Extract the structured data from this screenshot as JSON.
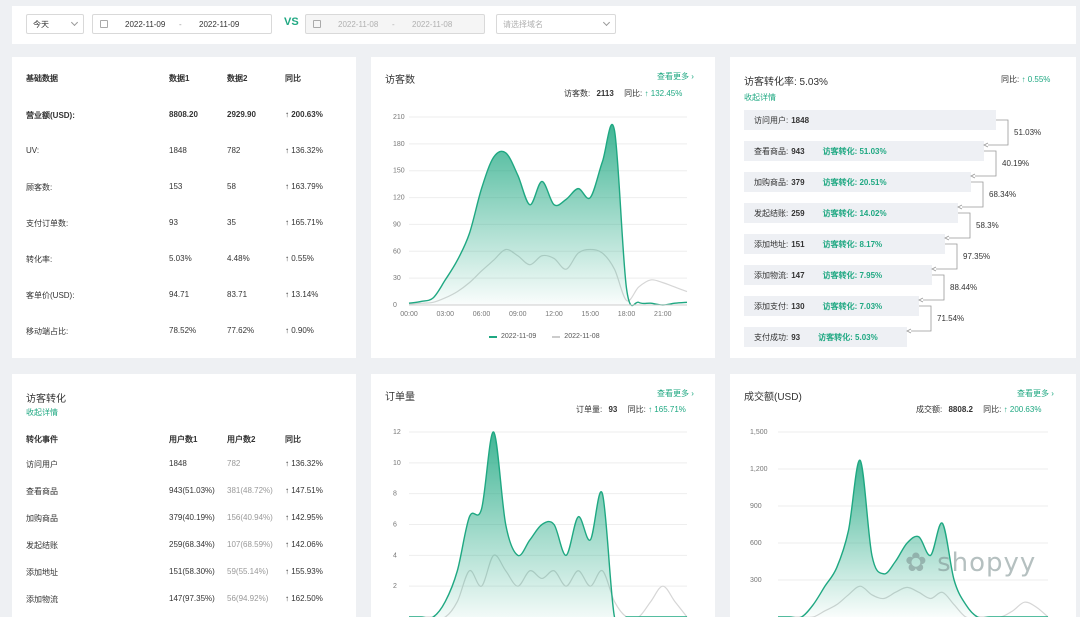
{
  "filters": {
    "period": "今天",
    "date1_start": "2022-11-09",
    "date1_end": "2022-11-09",
    "vs": "VS",
    "date2_start": "2022-11-08",
    "date2_end": "2022-11-08",
    "domain_placeholder": "请选择域名",
    "date_sep": "-"
  },
  "basic": {
    "headers": [
      "基础数据",
      "数据1",
      "数据2",
      "同比"
    ],
    "rows": [
      {
        "name": "营业额(USD):",
        "v1": "8808.20",
        "v2": "2929.90",
        "ratio": "↑ 200.63%",
        "highlight": true
      },
      {
        "name": "UV:",
        "v1": "1848",
        "v2": "782",
        "ratio": "↑ 136.32%"
      },
      {
        "name": "顾客数:",
        "v1": "153",
        "v2": "58",
        "ratio": "↑ 163.79%"
      },
      {
        "name": "支付订单数:",
        "v1": "93",
        "v2": "35",
        "ratio": "↑ 165.71%"
      },
      {
        "name": "转化率:",
        "v1": "5.03%",
        "v2": "4.48%",
        "ratio": "↑ 0.55%"
      },
      {
        "name": "客单价(USD):",
        "v1": "94.71",
        "v2": "83.71",
        "ratio": "↑ 13.14%"
      },
      {
        "name": "移动端占比:",
        "v1": "78.52%",
        "v2": "77.62%",
        "ratio": "↑ 0.90%"
      }
    ]
  },
  "visitors": {
    "title": "访客数",
    "more": "查看更多 ›",
    "stat_label": "访客数:",
    "stat_value": "2113",
    "yoy_label": "同比:",
    "yoy_value": "↑ 132.45%",
    "legend1": "2022-11-09",
    "legend2": "2022-11-08"
  },
  "funnel": {
    "title": "访客转化率:  5.03%",
    "yoy_label": "同比:",
    "yoy_value": "↑ 0.55%",
    "collapse": "收起详情",
    "steps": [
      {
        "name": "访问用户:",
        "value": "1848",
        "conv": ""
      },
      {
        "name": "查看商品:",
        "value": "943",
        "conv": "访客转化: 51.03%"
      },
      {
        "name": "加购商品:",
        "value": "379",
        "conv": "访客转化: 20.51%"
      },
      {
        "name": "发起结账:",
        "value": "259",
        "conv": "访客转化: 14.02%"
      },
      {
        "name": "添加地址:",
        "value": "151",
        "conv": "访客转化: 8.17%"
      },
      {
        "name": "添加物流:",
        "value": "147",
        "conv": "访客转化: 7.95%"
      },
      {
        "name": "添加支付:",
        "value": "130",
        "conv": "访客转化: 7.03%"
      },
      {
        "name": "支付成功:",
        "value": "93",
        "conv": "访客转化: 5.03%"
      }
    ],
    "step_rates": [
      "51.03%",
      "40.19%",
      "68.34%",
      "58.3%",
      "97.35%",
      "88.44%",
      "71.54%"
    ]
  },
  "conversion": {
    "title": "访客转化",
    "collapse": "收起详情",
    "headers": [
      "转化事件",
      "用户数1",
      "用户数2",
      "同比"
    ],
    "rows": [
      {
        "name": "访问用户",
        "v1": "1848",
        "v2": "782",
        "ratio": "↑ 136.32%"
      },
      {
        "name": "查看商品",
        "v1": "943(51.03%)",
        "v2": "381(48.72%)",
        "ratio": "↑ 147.51%"
      },
      {
        "name": "加购商品",
        "v1": "379(40.19%)",
        "v2": "156(40.94%)",
        "ratio": "↑ 142.95%"
      },
      {
        "name": "发起结账",
        "v1": "259(68.34%)",
        "v2": "107(68.59%)",
        "ratio": "↑ 142.06%"
      },
      {
        "name": "添加地址",
        "v1": "151(58.30%)",
        "v2": "59(55.14%)",
        "ratio": "↑ 155.93%"
      },
      {
        "name": "添加物流",
        "v1": "147(97.35%)",
        "v2": "56(94.92%)",
        "ratio": "↑ 162.50%"
      }
    ]
  },
  "orders": {
    "title": "订单量",
    "more": "查看更多 ›",
    "stat_label": "订单量:",
    "stat_value": "93",
    "yoy_label": "同比:",
    "yoy_value": "↑ 165.71%"
  },
  "revenue": {
    "title": "成交额(USD)",
    "more": "查看更多 ›",
    "stat_label": "成交额:",
    "stat_value": "8808.2",
    "yoy_label": "同比:",
    "yoy_value": "↑ 200.63%"
  },
  "watermark": "shopyy",
  "colors": {
    "accent": "#1fa882",
    "compare": "#d0d0d0"
  },
  "chart_data": [
    {
      "type": "area",
      "x": [
        "00:00",
        "01:00",
        "02:00",
        "03:00",
        "04:00",
        "05:00",
        "06:00",
        "07:00",
        "08:00",
        "09:00",
        "10:00",
        "11:00",
        "12:00",
        "13:00",
        "14:00",
        "15:00",
        "16:00",
        "17:00",
        "18:00",
        "19:00",
        "20:00",
        "21:00",
        "22:00",
        "23:00"
      ],
      "xticks": [
        "00:00",
        "03:00",
        "06:00",
        "09:00",
        "12:00",
        "15:00",
        "18:00",
        "21:00"
      ],
      "yticks": [
        0,
        30,
        60,
        90,
        120,
        150,
        180,
        210
      ],
      "ylim": [
        0,
        210
      ],
      "series": [
        {
          "name": "2022-11-09",
          "values": [
            2,
            4,
            8,
            28,
            50,
            80,
            130,
            165,
            170,
            145,
            112,
            138,
            112,
            118,
            130,
            120,
            160,
            195,
            18,
            3,
            2,
            0,
            2,
            3
          ]
        },
        {
          "name": "2022-11-08",
          "values": [
            1,
            2,
            3,
            8,
            15,
            25,
            38,
            50,
            62,
            55,
            45,
            55,
            52,
            40,
            58,
            62,
            58,
            40,
            5,
            20,
            28,
            25,
            20,
            15
          ]
        }
      ]
    },
    {
      "type": "area",
      "yticks": [
        2,
        4,
        6,
        8,
        10,
        12
      ],
      "ylim": [
        0,
        12
      ],
      "series": [
        {
          "name": "2022-11-09",
          "values": [
            0,
            0,
            0,
            1,
            3,
            6.5,
            7,
            12,
            6,
            4,
            5,
            6,
            6,
            4,
            6.5,
            5,
            8,
            0,
            0,
            0,
            0,
            0,
            0,
            0
          ]
        },
        {
          "name": "2022-11-08",
          "values": [
            0,
            0,
            0,
            0,
            1,
            3,
            2,
            4,
            3,
            2,
            3,
            2.5,
            3,
            2,
            3,
            2,
            3,
            1,
            0,
            0,
            1,
            2,
            1,
            0
          ]
        }
      ]
    },
    {
      "type": "area",
      "yticks": [
        300,
        600,
        900,
        1200,
        1500
      ],
      "ylim": [
        0,
        1500
      ],
      "series": [
        {
          "name": "2022-11-09",
          "values": [
            0,
            0,
            0,
            100,
            250,
            400,
            700,
            1270,
            500,
            350,
            450,
            600,
            650,
            500,
            760,
            300,
            100,
            0,
            0,
            0,
            0,
            0,
            0,
            0
          ]
        },
        {
          "name": "2022-11-08",
          "values": [
            0,
            0,
            0,
            0,
            50,
            100,
            180,
            250,
            180,
            150,
            200,
            240,
            200,
            150,
            200,
            100,
            0,
            0,
            0,
            0,
            50,
            120,
            80,
            0
          ]
        }
      ]
    }
  ]
}
